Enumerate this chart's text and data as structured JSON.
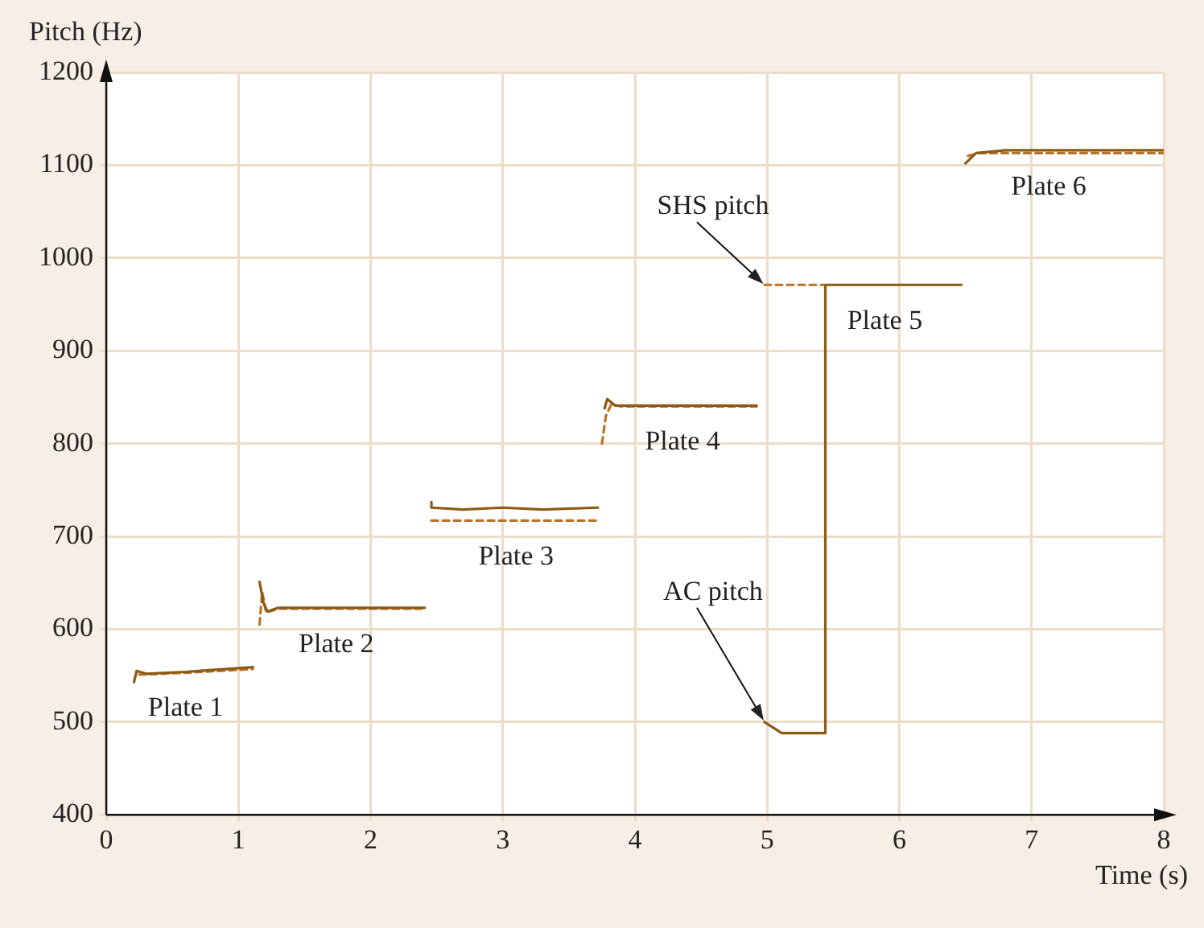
{
  "chart_data": {
    "type": "line",
    "xlabel": "Time (s)",
    "ylabel": "Pitch (Hz)",
    "xlim": [
      0,
      8
    ],
    "xticks": [
      0,
      1,
      2,
      3,
      4,
      5,
      6,
      7,
      8
    ],
    "ylim": [
      400,
      1200
    ],
    "yticks": [
      400,
      500,
      600,
      700,
      800,
      900,
      1000,
      1100,
      1200
    ],
    "grid": true,
    "legend": false,
    "marker": "none",
    "series": [
      {
        "color": "#8b5a14",
        "line_style": "solid",
        "x": [
          0.21,
          0.23,
          0.3,
          0.6,
          0.8,
          1.11,
          1.13,
          1.16,
          1.19,
          1.22,
          1.3,
          2.41,
          2.43,
          2.46,
          2.46,
          2.7,
          3.0,
          3.3,
          3.72,
          3.74,
          3.77,
          3.79,
          3.85,
          4.92,
          4.95,
          4.98,
          5.11,
          5.44,
          5.44,
          6.47,
          6.49,
          6.5,
          6.58,
          6.8,
          7.3,
          8.0
        ],
        "values": [
          543,
          555,
          552,
          554,
          556,
          559,
          null,
          651,
          628,
          619,
          623,
          623,
          null,
          737,
          731,
          729,
          731,
          729,
          731,
          null,
          838,
          848,
          841,
          841,
          null,
          500,
          488,
          488,
          971,
          971,
          null,
          1102,
          1113,
          1116,
          1116,
          1116
        ]
      },
      {
        "color": "#b8732a",
        "line_style": "dashed",
        "x": [
          0.25,
          0.6,
          1.11,
          1.13,
          1.16,
          1.18,
          1.21,
          1.3,
          2.41,
          2.43,
          2.46,
          3.72,
          3.73,
          3.75,
          3.78,
          3.82,
          3.9,
          4.92,
          4.95,
          4.98,
          5.43,
          5.45,
          6.52,
          6.6,
          8.0
        ],
        "values": [
          551,
          553,
          557,
          null,
          605,
          640,
          618,
          622,
          622,
          null,
          717,
          717,
          null,
          800,
          830,
          842,
          840,
          840,
          null,
          971,
          971,
          null,
          1110,
          1113,
          1113
        ]
      }
    ],
    "annotations": [
      {
        "text": "SHS pitch",
        "x": 4.98,
        "y": 971
      },
      {
        "text": "AC pitch",
        "x": 4.98,
        "y": 500
      },
      {
        "text": "Plate 1",
        "x": 0.6,
        "y": 554
      },
      {
        "text": "Plate 2",
        "x": 1.74,
        "y": 623
      },
      {
        "text": "Plate 3",
        "x": 3.1,
        "y": 717
      },
      {
        "text": "Plate 4",
        "x": 4.36,
        "y": 841
      },
      {
        "text": "Plate 5",
        "x": 5.89,
        "y": 971
      },
      {
        "text": "Plate 6",
        "x": 7.13,
        "y": 1116
      }
    ]
  }
}
